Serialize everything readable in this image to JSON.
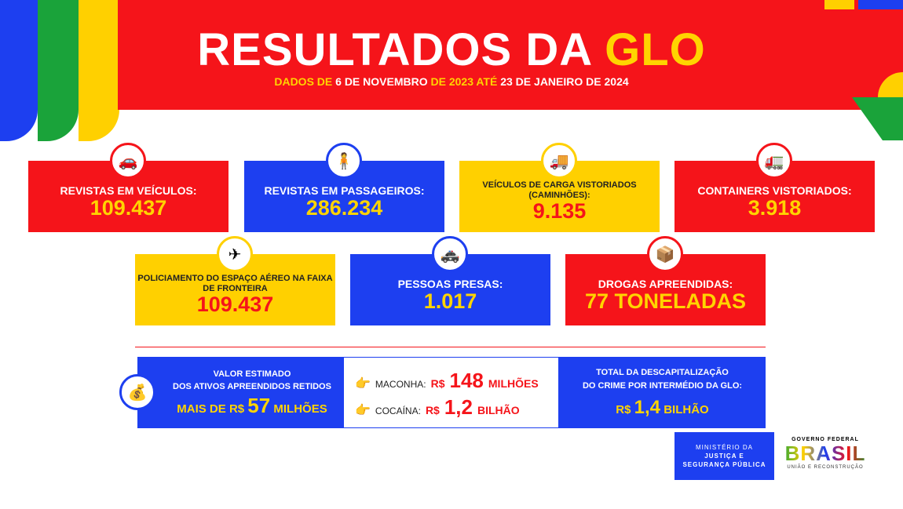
{
  "header": {
    "title_main": "RESULTADOS DA",
    "title_accent": "GLO",
    "subtitle_parts": [
      "DADOS DE",
      "6 DE NOVEMBRO",
      "DE 2023 ATÉ",
      "23 DE",
      "JANEIRO DE 2024"
    ]
  },
  "colors": {
    "red": "#f5141a",
    "blue": "#1d3ff0",
    "yellow": "#ffd000",
    "green": "#1aa33a"
  },
  "cards": [
    {
      "icon": "car-icon",
      "glyph": "🚗",
      "label": "REVISTAS EM VEÍCULOS:",
      "value": "109.437"
    },
    {
      "icon": "passenger-icon",
      "glyph": "🧍",
      "label": "REVISTAS EM PASSAGEIROS:",
      "value": "286.234"
    },
    {
      "icon": "truck-icon",
      "glyph": "🚚",
      "label": "VEÍCULOS DE CARGA VISTORIADOS (CAMINHÕES):",
      "value": "9.135"
    },
    {
      "icon": "container-truck-icon",
      "glyph": "🚛",
      "label": "CONTAINERS VISTORIADOS:",
      "value": "3.918"
    },
    {
      "icon": "airplane-icon",
      "glyph": "✈",
      "label": "POLICIAMENTO DO ESPAÇO AÉREO NA FAIXA DE FRONTEIRA",
      "value": "109.437"
    },
    {
      "icon": "police-car-icon",
      "glyph": "🚓",
      "label": "PESSOAS PRESAS:",
      "value": "1.017"
    },
    {
      "icon": "package-icon",
      "glyph": "📦",
      "label": "DROGAS APREENDIDAS:",
      "value": "77 TONELADAS"
    }
  ],
  "assets": {
    "icon": "money-bag-icon",
    "glyph": "💰",
    "line1": "VALOR ESTIMADO",
    "line2": "DOS ATIVOS APREENDIDOS RETIDOS",
    "prefix": "MAIS DE  R$",
    "amount": "57",
    "unit": "MILHÕES"
  },
  "drugs": [
    {
      "icon": "pointing-hand-icon",
      "glyph": "👉",
      "label": "MACONHA:",
      "currency": "R$",
      "amount": "148",
      "unit": "MILHÕES"
    },
    {
      "icon": "pointing-hand-icon",
      "glyph": "👉",
      "label": "COCAÍNA:",
      "currency": "R$",
      "amount": "1,2",
      "unit": "BILHÃO"
    }
  ],
  "total": {
    "line1": "TOTAL DA DESCAPITALIZAÇÃO",
    "line2": "DO CRIME POR INTERMÉDIO DA GLO:",
    "currency": "R$",
    "amount": "1,4",
    "unit": "BILHÃO"
  },
  "footer": {
    "ministry_l1": "MINISTÉRIO DA",
    "ministry_l2": "JUSTIÇA E",
    "ministry_l3": "SEGURANÇA PÚBLICA",
    "gov_top": "GOVERNO FEDERAL",
    "gov_logo": "BRASIL",
    "gov_bottom": "UNIÃO E RECONSTRUÇÃO"
  }
}
